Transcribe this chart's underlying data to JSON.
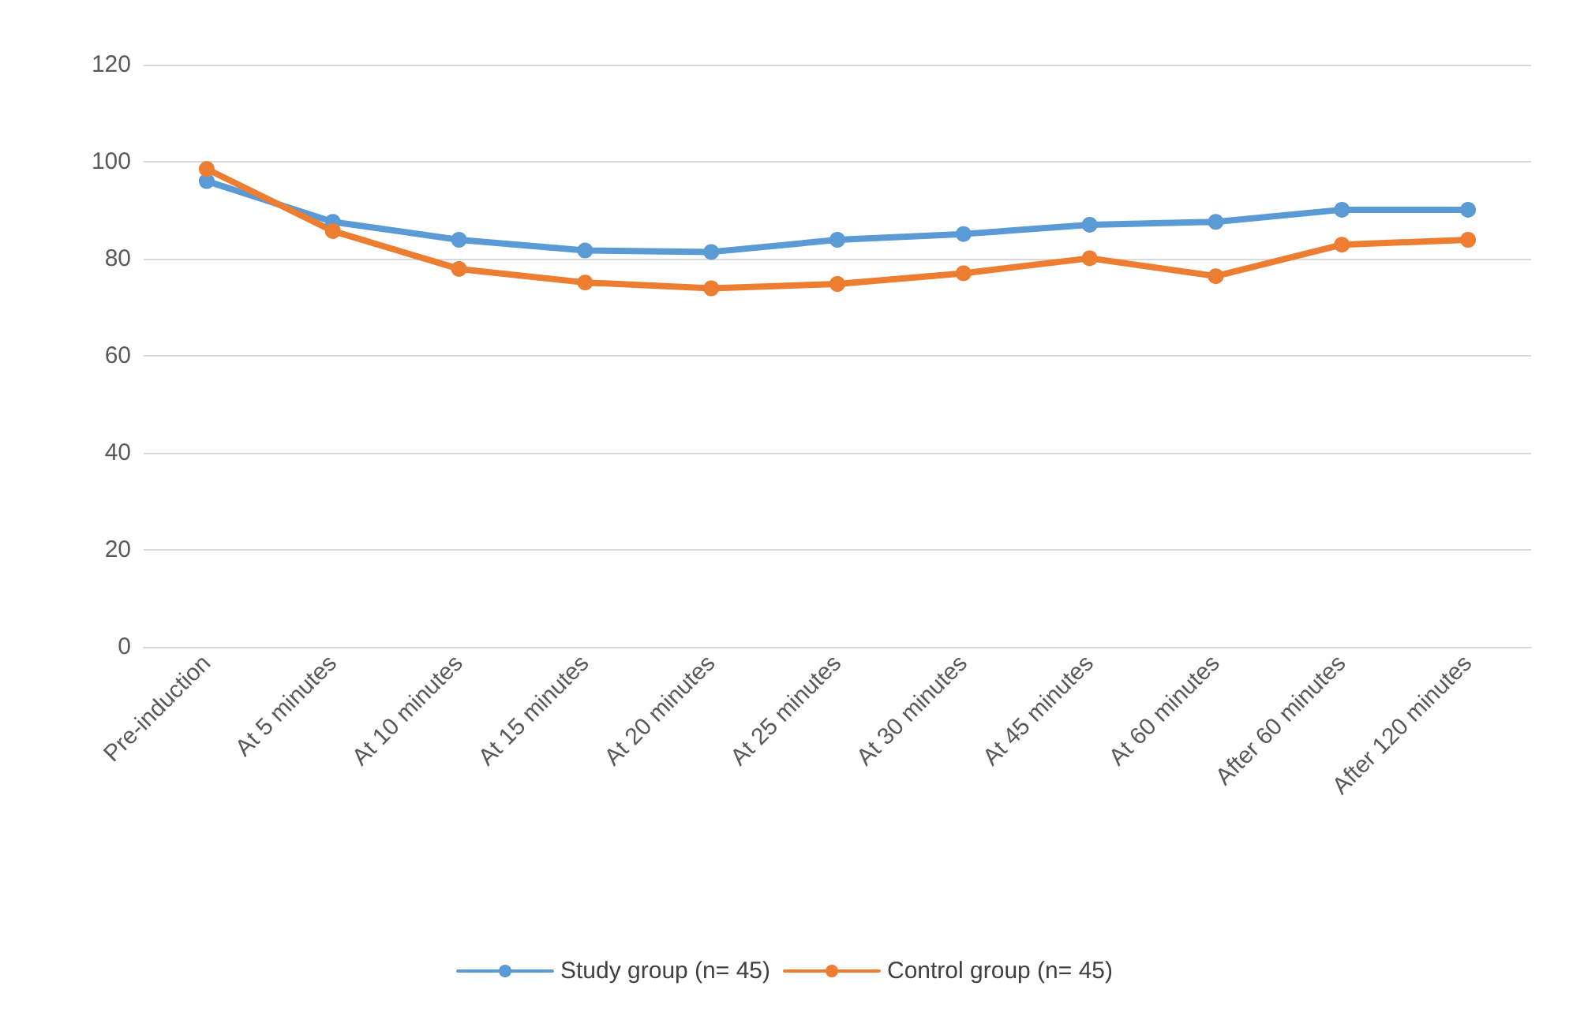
{
  "chart_data": {
    "type": "line",
    "categories": [
      "Pre-induction",
      "At 5 minutes",
      "At 10 minutes",
      "At 15 minutes",
      "At 20 minutes",
      "At 25 minutes",
      "At 30 minutes",
      "At 45 minutes",
      "At 60 minutes",
      "After 60 minutes",
      "After 120 minutes"
    ],
    "series": [
      {
        "name": "Study group (n= 45)",
        "color": "#5b9bd5",
        "values": [
          96,
          87.6,
          83.9,
          81.7,
          81.4,
          83.9,
          85.1,
          87,
          87.6,
          90.1,
          90.1
        ]
      },
      {
        "name": "Control group (n= 45)",
        "color": "#ed7d31",
        "values": [
          98.5,
          85.7,
          77.9,
          75.1,
          73.9,
          74.8,
          77,
          80.1,
          76.4,
          82.9,
          83.9
        ]
      }
    ],
    "ylim": [
      0,
      120
    ],
    "yticks": [
      0,
      20,
      40,
      60,
      80,
      100,
      120
    ],
    "grid": "y",
    "legend": "bottom",
    "marker": "circle",
    "line_style": "solid"
  }
}
